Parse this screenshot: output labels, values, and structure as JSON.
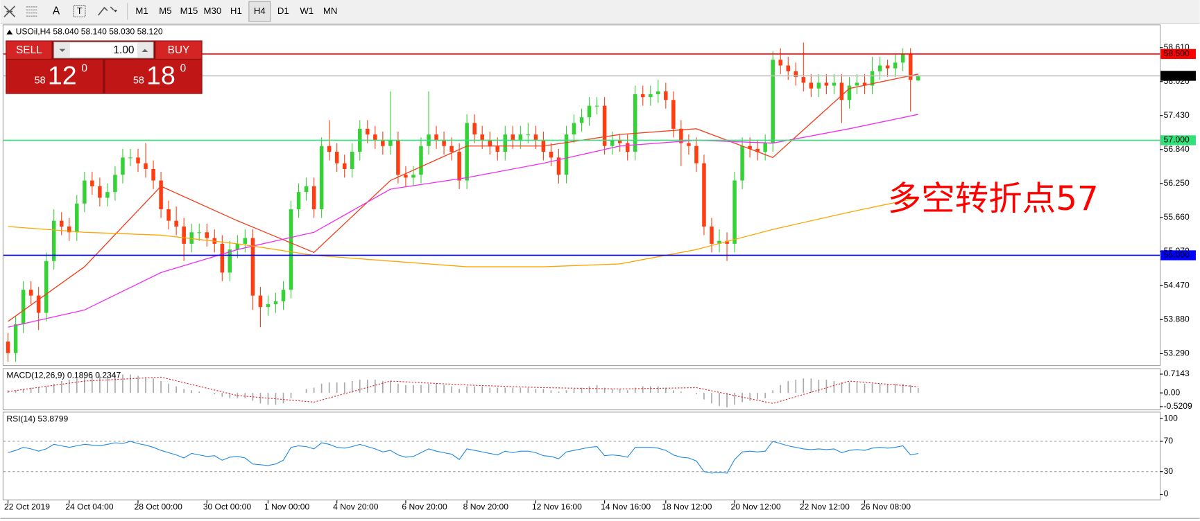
{
  "toolbar": {
    "tools": [
      "A",
      "T"
    ],
    "timeframes": [
      "M1",
      "M5",
      "M15",
      "M30",
      "H1",
      "H4",
      "D1",
      "W1",
      "MN"
    ],
    "active": 5
  },
  "order_panel": {
    "sell": "SELL",
    "lots": "1.00",
    "buy": "BUY",
    "bid_big": 58,
    "bid_digits": 12,
    "bid_sup": 0,
    "ask_big": 58,
    "ask_digits": 18,
    "ask_sup": 0
  },
  "chart_data": [
    {
      "type": "candlestick",
      "title": "USOil,H4 58.040 58.140 58.030 58.120",
      "categories": [
        "22 Oct 2019",
        null,
        null,
        null,
        null,
        null,
        null,
        null,
        "24 Oct 04:00",
        null,
        null,
        null,
        null,
        null,
        null,
        null,
        null,
        "28 Oct 00:00",
        null,
        null,
        null,
        null,
        null,
        null,
        null,
        null,
        "30 Oct 00:00",
        null,
        null,
        null,
        null,
        null,
        null,
        null,
        "1 Nov 00:00",
        null,
        null,
        null,
        null,
        null,
        null,
        null,
        null,
        "4 Nov 20:00",
        null,
        null,
        null,
        null,
        null,
        null,
        null,
        null,
        "6 Nov 20:00",
        null,
        null,
        null,
        null,
        null,
        null,
        null,
        "8 Nov 20:00",
        null,
        null,
        null,
        null,
        null,
        null,
        null,
        null,
        "12 Nov 16:00",
        null,
        null,
        null,
        null,
        null,
        null,
        null,
        null,
        "14 Nov 16:00",
        null,
        null,
        null,
        null,
        null,
        null,
        null,
        "18 Nov 12:00",
        null,
        null,
        null,
        null,
        null,
        null,
        null,
        null,
        "20 Nov 12:00",
        null,
        null,
        null,
        null,
        null,
        null,
        null,
        null,
        "22 Nov 12:00",
        null,
        null,
        null,
        null,
        null,
        null,
        null,
        "26 Nov 08:00",
        null,
        null,
        null,
        null,
        null,
        null,
        null
      ],
      "open": [
        53.5,
        53.3,
        53.8,
        54.4,
        54.3,
        54.0,
        54.9,
        55.6,
        55.5,
        55.4,
        55.9,
        56.3,
        56.2,
        56.0,
        56.1,
        56.4,
        56.7,
        56.7,
        56.6,
        56.5,
        56.3,
        55.8,
        55.6,
        55.5,
        55.2,
        55.4,
        55.4,
        55.3,
        55.2,
        54.7,
        55.1,
        55.2,
        55.3,
        54.3,
        54.1,
        54.15,
        54.2,
        54.4,
        55.8,
        56.1,
        56.2,
        55.8,
        56.9,
        56.8,
        56.6,
        56.5,
        56.8,
        57.2,
        57.1,
        57.0,
        56.9,
        57.0,
        56.4,
        56.35,
        56.4,
        56.9,
        57.1,
        57.0,
        56.9,
        56.8,
        56.3,
        57.3,
        57.1,
        57.0,
        56.9,
        56.8,
        57.1,
        57.0,
        57.1,
        57.1,
        57.0,
        56.8,
        56.7,
        56.4,
        57.1,
        57.3,
        57.4,
        57.6,
        57.6,
        56.9,
        57.0,
        56.95,
        56.8,
        57.8,
        57.75,
        57.8,
        57.85,
        57.7,
        57.2,
        56.95,
        56.9,
        56.6,
        55.5,
        55.2,
        55.25,
        55.2,
        56.3,
        56.9,
        56.85,
        56.8,
        56.95,
        58.4,
        58.3,
        58.2,
        58.1,
        58.0,
        57.9,
        58.0,
        57.95,
        58.0,
        57.7,
        57.95,
        58.0,
        57.95,
        58.2,
        58.3,
        58.25,
        58.35,
        58.5,
        58.04
      ],
      "high": [
        53.65,
        53.95,
        54.55,
        54.55,
        54.45,
        55.05,
        55.8,
        55.75,
        55.65,
        56.05,
        56.45,
        56.45,
        56.35,
        56.25,
        56.55,
        56.85,
        56.85,
        56.85,
        56.95,
        56.65,
        56.45,
        55.95,
        55.85,
        55.65,
        55.55,
        55.55,
        55.55,
        55.45,
        55.35,
        55.25,
        55.35,
        55.45,
        55.45,
        54.45,
        54.3,
        54.35,
        54.55,
        55.95,
        56.25,
        56.35,
        56.35,
        57.05,
        57.35,
        56.95,
        56.75,
        56.95,
        57.35,
        57.35,
        57.25,
        57.15,
        57.85,
        57.15,
        56.55,
        56.55,
        57.05,
        57.85,
        57.25,
        57.15,
        57.05,
        56.95,
        57.45,
        57.45,
        57.25,
        57.15,
        57.05,
        57.25,
        57.25,
        57.25,
        57.3,
        57.25,
        57.15,
        56.95,
        56.85,
        57.25,
        57.45,
        57.55,
        57.75,
        57.75,
        57.75,
        57.15,
        57.1,
        57.1,
        57.95,
        57.95,
        57.95,
        58.05,
        58.0,
        57.85,
        57.35,
        57.1,
        57.05,
        56.75,
        55.65,
        55.45,
        55.4,
        56.45,
        57.05,
        57.05,
        57.0,
        57.1,
        58.55,
        58.6,
        58.45,
        58.35,
        58.7,
        58.15,
        58.15,
        58.15,
        58.15,
        58.15,
        58.1,
        58.15,
        58.15,
        58.45,
        58.45,
        58.4,
        58.5,
        58.6,
        58.6,
        58.14
      ],
      "low": [
        53.15,
        53.15,
        53.65,
        54.15,
        53.7,
        53.85,
        54.75,
        55.35,
        55.25,
        55.25,
        55.75,
        56.05,
        55.85,
        55.85,
        55.95,
        56.25,
        56.55,
        56.45,
        56.35,
        56.15,
        55.65,
        55.45,
        55.35,
        54.9,
        55.05,
        55.25,
        55.15,
        55.05,
        54.55,
        54.55,
        54.95,
        55.05,
        54.05,
        53.75,
        53.95,
        54.0,
        54.05,
        54.25,
        55.65,
        55.95,
        55.65,
        55.65,
        56.65,
        56.45,
        56.35,
        56.35,
        56.65,
        56.95,
        56.85,
        56.75,
        56.75,
        56.25,
        56.2,
        56.2,
        56.25,
        56.75,
        56.85,
        56.75,
        56.65,
        56.15,
        56.15,
        56.95,
        56.85,
        56.75,
        56.65,
        56.65,
        56.85,
        56.85,
        56.95,
        56.85,
        56.65,
        56.55,
        56.25,
        56.25,
        56.95,
        57.15,
        57.25,
        57.45,
        56.75,
        56.75,
        56.8,
        56.65,
        56.65,
        57.6,
        57.6,
        57.65,
        57.55,
        57.05,
        56.55,
        56.75,
        56.45,
        55.35,
        55.05,
        55.05,
        54.9,
        55.05,
        56.15,
        56.7,
        56.65,
        56.65,
        56.8,
        58.15,
        58.05,
        57.95,
        57.85,
        57.75,
        57.75,
        57.8,
        57.8,
        57.3,
        57.55,
        57.8,
        57.8,
        57.8,
        58.05,
        58.1,
        58.1,
        58.2,
        57.5,
        58.03
      ],
      "close": [
        53.3,
        53.8,
        54.4,
        54.3,
        54.0,
        54.9,
        55.6,
        55.5,
        55.4,
        55.9,
        56.3,
        56.2,
        56.0,
        56.1,
        56.4,
        56.7,
        56.7,
        56.6,
        56.5,
        56.3,
        55.8,
        55.6,
        55.5,
        55.2,
        55.4,
        55.4,
        55.3,
        55.2,
        54.7,
        55.1,
        55.2,
        55.3,
        54.3,
        54.1,
        54.15,
        54.2,
        54.4,
        55.8,
        56.1,
        56.2,
        55.8,
        56.9,
        56.8,
        56.6,
        56.5,
        56.8,
        57.2,
        57.1,
        57.0,
        56.9,
        57.0,
        56.4,
        56.35,
        56.4,
        56.9,
        57.1,
        57.0,
        56.9,
        56.8,
        56.3,
        57.3,
        57.1,
        57.0,
        56.9,
        56.8,
        57.1,
        57.0,
        57.1,
        57.1,
        57.0,
        56.8,
        56.7,
        56.4,
        57.1,
        57.3,
        57.4,
        57.6,
        57.6,
        56.9,
        57.0,
        56.95,
        56.8,
        57.8,
        57.75,
        57.8,
        57.85,
        57.7,
        57.2,
        56.95,
        56.9,
        56.6,
        55.5,
        55.2,
        55.25,
        55.2,
        56.3,
        56.9,
        56.85,
        56.8,
        56.95,
        58.4,
        58.3,
        58.2,
        58.1,
        58.0,
        57.9,
        58.0,
        57.95,
        58.0,
        57.7,
        57.95,
        58.0,
        57.95,
        58.2,
        58.3,
        58.25,
        58.35,
        58.5,
        58.05,
        58.12
      ],
      "up_color": "#36d136",
      "down_color": "#ff3d10",
      "series": [
        {
          "color": "#f0401e",
          "x": [
            0,
            10,
            20,
            30,
            40,
            50,
            60,
            70,
            80,
            90,
            100,
            110,
            119
          ],
          "values": [
            53.85,
            54.8,
            56.2,
            55.6,
            55.05,
            56.3,
            56.9,
            56.9,
            57.1,
            57.2,
            56.7,
            57.9,
            58.15
          ]
        },
        {
          "color": "#ee30ee",
          "x": [
            0,
            10,
            20,
            30,
            40,
            50,
            60,
            70,
            80,
            90,
            100,
            110,
            119
          ],
          "values": [
            53.75,
            54.05,
            54.7,
            55.1,
            55.4,
            56.15,
            56.35,
            56.6,
            56.9,
            57.0,
            56.95,
            57.2,
            57.45
          ]
        },
        {
          "color": "#ffa500",
          "x": [
            0,
            10,
            20,
            30,
            40,
            50,
            60,
            70,
            80,
            90,
            100,
            110,
            119
          ],
          "values": [
            55.5,
            55.4,
            55.35,
            55.2,
            55.0,
            54.9,
            54.8,
            54.8,
            54.85,
            55.1,
            55.45,
            55.75,
            56.0
          ]
        }
      ],
      "levels": [
        {
          "value": 58.5,
          "label": "58.500",
          "color": "#ff0000",
          "label_background": "#ff0000"
        },
        {
          "value": 58.12,
          "label": "58.120",
          "color": "#c0c0c0",
          "label_background": "#000000"
        },
        {
          "value": 57,
          "label": "57.000",
          "color": "#33e07a",
          "label_background": "#33e07a"
        },
        {
          "value": 55,
          "label": "55.000",
          "color": "#0000ff",
          "label_background": "#0000ff"
        }
      ],
      "annotation": "多空转折点57",
      "annotation_color": "#ff0000",
      "ylim": [
        53.09,
        59.0
      ],
      "yticks": [
        {
          "value": 58.61,
          "label": "58.610"
        },
        {
          "value": 58.02,
          "label": "58.020"
        },
        {
          "value": 57.43,
          "label": "57.430"
        },
        {
          "value": 56.84,
          "label": "56.840"
        },
        {
          "value": 56.25,
          "label": "56.250"
        },
        {
          "value": 55.66,
          "label": "55.660"
        },
        {
          "value": 55.07,
          "label": "55.070"
        },
        {
          "value": 54.47,
          "label": "54.470"
        },
        {
          "value": 53.88,
          "label": "53.880"
        },
        {
          "value": 53.29,
          "label": "53.290"
        }
      ]
    },
    {
      "type": "macd",
      "title": "MACD(12,26,9) 0.1896 0.2347",
      "values": [
        0.1,
        0.1,
        0.15,
        0.2,
        0.2,
        0.25,
        0.35,
        0.45,
        0.5,
        0.55,
        0.6,
        0.65,
        0.65,
        0.65,
        0.7,
        0.7,
        0.7,
        0.65,
        0.6,
        0.55,
        0.45,
        0.35,
        0.25,
        0.15,
        0.1,
        0.05,
        0.0,
        -0.05,
        -0.15,
        -0.2,
        -0.2,
        -0.2,
        -0.3,
        -0.4,
        -0.45,
        -0.45,
        -0.4,
        -0.2,
        0.0,
        0.15,
        0.2,
        0.35,
        0.4,
        0.4,
        0.4,
        0.45,
        0.5,
        0.5,
        0.5,
        0.45,
        0.45,
        0.35,
        0.3,
        0.3,
        0.3,
        0.35,
        0.35,
        0.3,
        0.25,
        0.15,
        0.25,
        0.25,
        0.25,
        0.2,
        0.2,
        0.2,
        0.2,
        0.2,
        0.2,
        0.15,
        0.15,
        0.1,
        0.05,
        0.1,
        0.15,
        0.2,
        0.25,
        0.3,
        0.2,
        0.15,
        0.15,
        0.1,
        0.2,
        0.25,
        0.25,
        0.25,
        0.2,
        0.1,
        0.05,
        0.0,
        -0.05,
        -0.25,
        -0.4,
        -0.5,
        -0.55,
        -0.45,
        -0.35,
        -0.3,
        -0.25,
        -0.2,
        0.1,
        0.3,
        0.45,
        0.5,
        0.55,
        0.55,
        0.5,
        0.5,
        0.45,
        0.4,
        0.4,
        0.4,
        0.35,
        0.35,
        0.35,
        0.35,
        0.35,
        0.35,
        0.3,
        0.1896
      ],
      "color": "#a8a8a8",
      "signal": {
        "color": "#e02020",
        "x": [
          0,
          10,
          20,
          30,
          40,
          50,
          60,
          70,
          80,
          90,
          100,
          110,
          119
        ],
        "values": [
          0.05,
          0.45,
          0.6,
          -0.1,
          -0.35,
          0.45,
          0.3,
          0.2,
          0.15,
          0.2,
          -0.4,
          0.45,
          0.2347
        ]
      },
      "ylim": [
        -0.63,
        0.91
      ],
      "yticks": [
        0.7143,
        {
          "value": 0,
          "label": "0.00"
        },
        -0.5209
      ]
    },
    {
      "type": "line",
      "title": "RSI(14) 53.8799",
      "color": "#1e88e5",
      "values": [
        55,
        58,
        62,
        60,
        57,
        60,
        66,
        64,
        62,
        64,
        66,
        65,
        64,
        66,
        68,
        67,
        70,
        67,
        65,
        62,
        58,
        55,
        52,
        48,
        54,
        52,
        50,
        51,
        45,
        49,
        50,
        48,
        40,
        39,
        38,
        40,
        45,
        62,
        64,
        63,
        60,
        68,
        66,
        62,
        61,
        63,
        66,
        63,
        60,
        56,
        58,
        52,
        49,
        50,
        55,
        60,
        57,
        55,
        53,
        46,
        60,
        58,
        56,
        54,
        52,
        57,
        55,
        57,
        57,
        55,
        51,
        50,
        47,
        56,
        58,
        60,
        62,
        63,
        51,
        52,
        51,
        49,
        62,
        62,
        62,
        61,
        58,
        52,
        49,
        48,
        44,
        30,
        28,
        29,
        28,
        46,
        56,
        57,
        56,
        57,
        70,
        67,
        64,
        62,
        60,
        59,
        60,
        59,
        60,
        55,
        58,
        59,
        58,
        61,
        62,
        61,
        62,
        64,
        52,
        53.8799
      ],
      "levels": [
        70,
        30
      ],
      "ylim": [
        -7,
        108
      ],
      "yticks": [
        100,
        70,
        30,
        0
      ]
    }
  ]
}
